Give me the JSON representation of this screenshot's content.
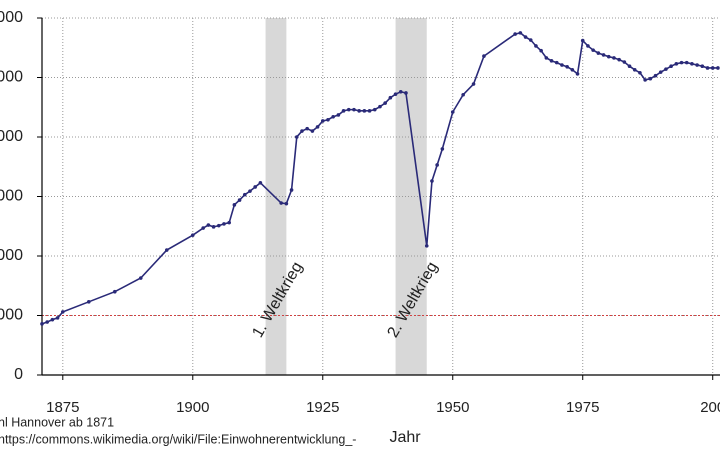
{
  "chart_data": {
    "type": "line",
    "x_label": "Jahr",
    "caption_lines": [
      "nl Hannover ab 1871",
      "https://commons.wikimedia.org/wiki/File:Einwohnerentwicklung_-"
    ],
    "color": "#2a2a78",
    "x": [
      1871,
      1872,
      1873,
      1874,
      1875,
      1880,
      1885,
      1890,
      1895,
      1900,
      1902,
      1903,
      1904,
      1905,
      1906,
      1907,
      1908,
      1909,
      1910,
      1911,
      1912,
      1913,
      1917,
      1918,
      1919,
      1920,
      1921,
      1922,
      1923,
      1924,
      1925,
      1926,
      1927,
      1928,
      1929,
      1930,
      1931,
      1932,
      1933,
      1934,
      1935,
      1936,
      1937,
      1938,
      1939,
      1940,
      1941,
      1945,
      1946,
      1947,
      1948,
      1950,
      1952,
      1954,
      1956,
      1962,
      1963,
      1964,
      1965,
      1966,
      1967,
      1968,
      1969,
      1970,
      1971,
      1972,
      1973,
      1974,
      1975,
      1976,
      1977,
      1978,
      1979,
      1980,
      1981,
      1982,
      1983,
      1984,
      1985,
      1986,
      1987,
      1988,
      1989,
      1990,
      1991,
      1992,
      1993,
      1994,
      1995,
      1996,
      1997,
      1998,
      1999,
      2000,
      2001
    ],
    "values": [
      86000,
      89000,
      93000,
      96000,
      106000,
      123000,
      140000,
      163000,
      210000,
      235000,
      247000,
      252000,
      249000,
      251000,
      254000,
      256000,
      286000,
      294000,
      303000,
      309000,
      316000,
      323000,
      289000,
      288000,
      311000,
      400000,
      410000,
      414000,
      410000,
      417000,
      427000,
      429000,
      434000,
      437000,
      444000,
      446000,
      446000,
      444000,
      444000,
      444000,
      446000,
      451000,
      457000,
      466000,
      472000,
      476000,
      474000,
      217000,
      326000,
      353000,
      380000,
      442000,
      471000,
      489000,
      536000,
      573000,
      575000,
      568000,
      563000,
      553000,
      545000,
      533000,
      528000,
      525000,
      521000,
      518000,
      513000,
      506000,
      562000,
      553000,
      546000,
      541000,
      538000,
      535000,
      533000,
      530000,
      526000,
      519000,
      513000,
      508000,
      496000,
      498000,
      503000,
      509000,
      514000,
      519000,
      523000,
      525000,
      525000,
      523000,
      521000,
      519000,
      516000,
      516000,
      516000
    ],
    "xlim": [
      1871,
      2001.4
    ],
    "xticks": [
      1875,
      1900,
      1925,
      1950,
      1975,
      {
        "value": 2000,
        "label": "200"
      }
    ],
    "ylim": [
      0,
      600000
    ],
    "yticks": [
      {
        "value": 0,
        "label": "0"
      },
      {
        "value": 100000,
        "label": "000"
      },
      {
        "value": 200000,
        "label": "000"
      },
      {
        "value": 300000,
        "label": "000"
      },
      {
        "value": 400000,
        "label": "000"
      },
      {
        "value": 500000,
        "label": "000"
      },
      {
        "value": 600000,
        "label": "000"
      }
    ],
    "grid": true,
    "reference_line": {
      "value": 100000,
      "color": "#d04040"
    },
    "shaded_regions": [
      {
        "label": "1. Weltkrieg",
        "start": 1914,
        "end": 1918,
        "color": "#d8d8d8"
      },
      {
        "label": "2. Weltkrieg",
        "start": 1939,
        "end": 1945,
        "color": "#d8d8d8"
      }
    ]
  }
}
